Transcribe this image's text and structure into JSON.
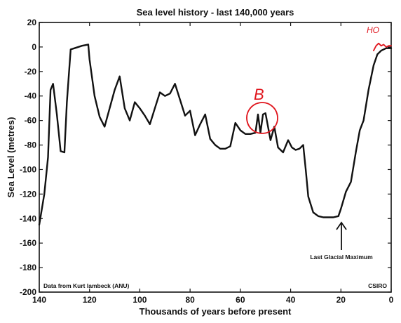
{
  "chart_data": {
    "type": "line",
    "title": "Sea level history - last 140,000 years",
    "xlabel": "Thousands of years before present",
    "ylabel": "Sea Level (metres)",
    "xlim": [
      140,
      0
    ],
    "ylim": [
      -200,
      20
    ],
    "x_axis_reversed": true,
    "xticks": [
      "140",
      "120",
      "100",
      "80",
      "60",
      "40",
      "20",
      "0"
    ],
    "yticks": [
      "20",
      "0",
      "-20",
      "-40",
      "-60",
      "-80",
      "-100",
      "-120",
      "-140",
      "-160",
      "-180",
      "-200"
    ],
    "grid": false,
    "series": [
      {
        "color": "#111111",
        "x": [
          140,
          138,
          136.5,
          135.5,
          134.5,
          133,
          131.5,
          130,
          129,
          127.5,
          126,
          123,
          120.5,
          120,
          118,
          116,
          114,
          112,
          110,
          108,
          106,
          104,
          102,
          100,
          98,
          96,
          94,
          92,
          90,
          88,
          86,
          84,
          82,
          80,
          78,
          76,
          74,
          72,
          70,
          68,
          66,
          64,
          62,
          60,
          58,
          56,
          54,
          53,
          52,
          51,
          50,
          49,
          48,
          46.5,
          45,
          43,
          41,
          39.5,
          38,
          36.5,
          35,
          34,
          33,
          31,
          29,
          27,
          25,
          23,
          21,
          20,
          19,
          18,
          16,
          14,
          12.5,
          11,
          9,
          7,
          5.5,
          4,
          3,
          2,
          0
        ],
        "y": [
          -145,
          -120,
          -90,
          -35,
          -30,
          -55,
          -85,
          -86,
          -45,
          -2,
          -1,
          1,
          2,
          -10,
          -40,
          -57,
          -65,
          -50,
          -35,
          -24,
          -50,
          -60,
          -45,
          -50,
          -56,
          -63,
          -50,
          -37,
          -40,
          -38,
          -30,
          -43,
          -56,
          -52,
          -72,
          -63,
          -55,
          -75,
          -80,
          -83,
          -83,
          -81,
          -62,
          -68,
          -71,
          -71,
          -70,
          -55,
          -70,
          -55,
          -54,
          -65,
          -76,
          -65,
          -82,
          -86,
          -76,
          -82,
          -84,
          -83,
          -80,
          -100,
          -122,
          -135,
          -138,
          -139,
          -139,
          -139,
          -138,
          -132,
          -125,
          -118,
          -110,
          -85,
          -68,
          -60,
          -35,
          -15,
          -6,
          -3,
          -2,
          -1,
          -1
        ]
      },
      {
        "color": "#e0141c",
        "x": [
          7,
          6,
          5,
          4,
          3,
          2,
          1,
          0
        ],
        "y": [
          -3,
          1,
          3,
          1,
          2,
          0,
          1,
          1
        ]
      }
    ],
    "annotations": {
      "lgm_label": "Last Glacial Maximum",
      "source": "Data from Kurt lambeck (ANU)",
      "credit": "CSIRO",
      "mark_b": "B",
      "mark_ho": "HO"
    }
  }
}
